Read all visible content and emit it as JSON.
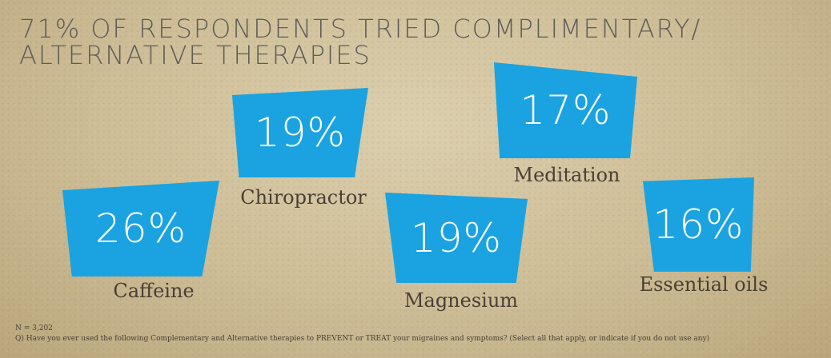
{
  "title": {
    "line1": "71% OF RESPONDENTS TRIED COMPLIMENTARY/",
    "line2": "ALTERNATIVE THERAPIES"
  },
  "chart_data": {
    "type": "table",
    "title": "71% OF RESPONDENTS TRIED COMPLIMENTARY/ ALTERNATIVE THERAPIES",
    "categories": [
      "Caffeine",
      "Chiropractor",
      "Magnesium",
      "Meditation",
      "Essential oils"
    ],
    "values": [
      26,
      19,
      19,
      17,
      16
    ],
    "value_labels": [
      "26%",
      "19%",
      "19%",
      "17%",
      "16%"
    ],
    "unit": "%",
    "color": "#1aa3e0"
  },
  "footnotes": {
    "n": "N = 3,202",
    "question": "Q) Have you ever used the following Complementary and Alternative therapies to PREVENT or TREAT your migraines and symptoms? (Select all that apply, or indicate if you do not use any)"
  }
}
